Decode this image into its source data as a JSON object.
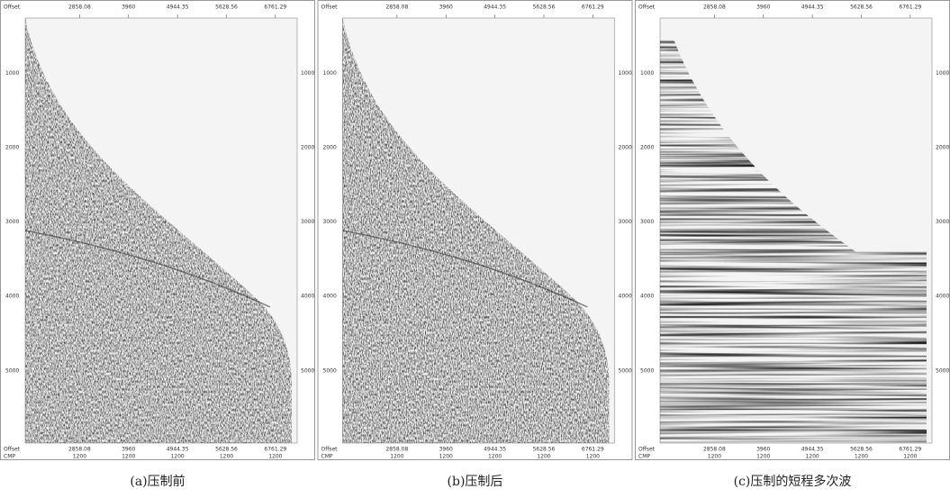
{
  "panels": [
    {
      "caption": "(a)压制前",
      "top_axis_title": "Offset",
      "x_ticks": [
        "2858.08",
        "3960",
        "4944.35",
        "5628.56",
        "6761.29"
      ],
      "y_ticks": [
        "1000",
        "2000",
        "3000",
        "4000",
        "5000"
      ],
      "bottom_axis_titles": [
        "Offset",
        "CMP"
      ],
      "cmp_ticks": [
        "1200",
        "1200",
        "1200",
        "1200",
        "1200"
      ]
    },
    {
      "caption": "(b)压制后",
      "top_axis_title": "Offset",
      "x_ticks": [
        "2858.08",
        "3960",
        "4944.35",
        "5628.56",
        "6761.29"
      ],
      "y_ticks": [
        "1000",
        "2000",
        "3000",
        "4000",
        "5000"
      ],
      "bottom_axis_titles": [
        "Offset",
        "CMP"
      ],
      "cmp_ticks": [
        "1200",
        "1200",
        "1200",
        "1200",
        "1200"
      ]
    },
    {
      "caption": "(c)压制的短程多次波",
      "top_axis_title": "Offset",
      "x_ticks": [
        "2858.08",
        "3960",
        "4944.35",
        "5628.56",
        "6761.29"
      ],
      "y_ticks": [
        "1000",
        "2000",
        "3000",
        "4000",
        "5000"
      ],
      "bottom_axis_titles": [
        "Offset",
        "CMP"
      ],
      "cmp_ticks": [
        "1200",
        "1200",
        "1200",
        "1200",
        "1200"
      ]
    }
  ]
}
